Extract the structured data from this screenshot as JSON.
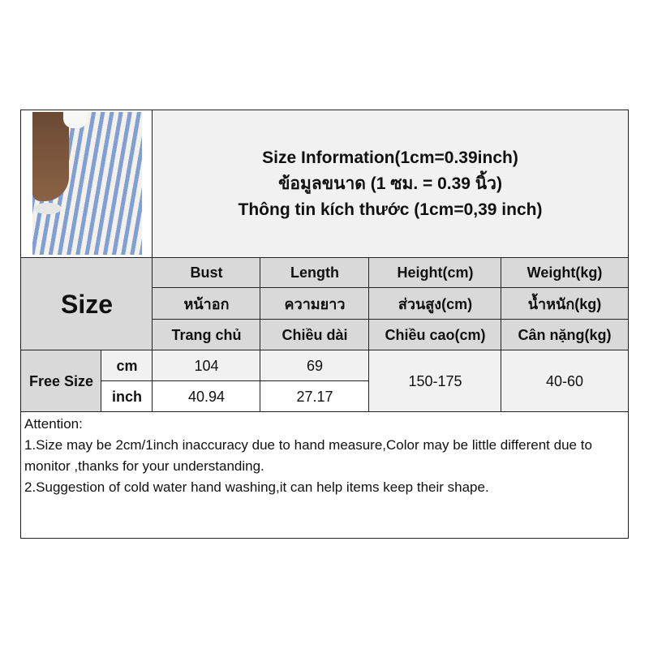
{
  "title": {
    "line1": "Size Information(1cm=0.39inch)",
    "line2": "ข้อมูลขนาด (1 ซม. = 0.39 นิ้ว)",
    "line3": "Thông tin kích thước (1cm=0,39 inch)"
  },
  "size_label": "Size",
  "headers": [
    {
      "en": "Bust",
      "th": "หน้าอก",
      "vi": "Trang chủ"
    },
    {
      "en": "Length",
      "th": "ความยาว",
      "vi": "Chiều dài"
    },
    {
      "en": "Height(cm)",
      "th": "ส่วนสูง(cm)",
      "vi": "Chiều cao(cm)"
    },
    {
      "en": "Weight(kg)",
      "th": "น้ำหนัก(kg)",
      "vi": "Cân nặng(kg)"
    }
  ],
  "row": {
    "size": "Free Size",
    "unit_cm": "cm",
    "unit_inch": "inch",
    "bust_cm": "104",
    "length_cm": "69",
    "bust_inch": "40.94",
    "length_inch": "27.17",
    "height": "150-175",
    "weight": "40-60"
  },
  "attention": {
    "heading": "Attention:",
    "line1": "1.Size may be 2cm/1inch inaccuracy due to hand measure,Color may be little different due to monitor ,thanks for your understanding.",
    "line2": "2.Suggestion of cold water hand washing,it can help items keep their shape."
  }
}
